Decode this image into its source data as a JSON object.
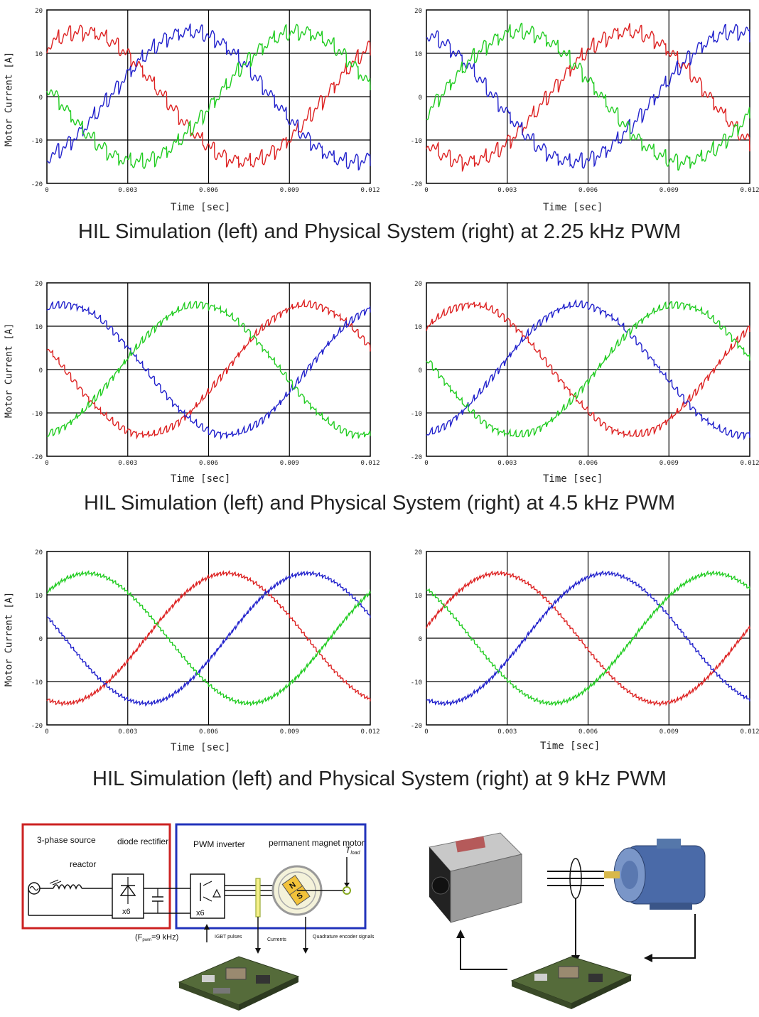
{
  "colors": {
    "phase_a": "#dd2222",
    "phase_b": "#2222cc",
    "phase_c": "#22cc22",
    "grid": "#000000"
  },
  "captions": [
    "HIL Simulation (left) and Physical System (right) at 2.25 kHz PWM",
    "HIL Simulation (left) and Physical System (right) at 4.5 kHz PWM",
    "HIL Simulation (left) and Physical System (right) at 9 kHz PWM"
  ],
  "chart_data": [
    {
      "type": "line",
      "pwm": "2.25 kHz",
      "side": "left",
      "ylabel": "Motor Current [A]",
      "xlabel": "Time [sec]",
      "xlim": [
        0,
        0.012
      ],
      "ylim": [
        -20,
        20
      ],
      "xticks": [
        "0",
        "0.003",
        "0.006",
        "0.009",
        "0.012"
      ],
      "yticks": [
        "20",
        "10",
        "0",
        "-10",
        "-20"
      ],
      "grid": true,
      "series": [
        {
          "color": "red",
          "amplitude": 15,
          "phase_deg": 50,
          "ripple": 2.5,
          "ripple_cycles": 27
        },
        {
          "color": "blue",
          "amplitude": 15,
          "phase_deg": -70,
          "ripple": 2.5,
          "ripple_cycles": 27
        },
        {
          "color": "green",
          "amplitude": 15,
          "phase_deg": 170,
          "ripple": 2.5,
          "ripple_cycles": 27
        }
      ]
    },
    {
      "type": "line",
      "pwm": "2.25 kHz",
      "side": "right",
      "ylabel": "",
      "xlabel": "Time [sec]",
      "xlim": [
        0,
        0.012
      ],
      "ylim": [
        -20,
        20
      ],
      "xticks": [
        "0",
        "0.003",
        "0.006",
        "0.009",
        "0.012"
      ],
      "yticks": [
        "20",
        "10",
        "0",
        "-10",
        "-20"
      ],
      "grid": true,
      "series": [
        {
          "color": "red",
          "amplitude": 15,
          "phase_deg": -135,
          "ripple": 2.5,
          "ripple_cycles": 27
        },
        {
          "color": "blue",
          "amplitude": 15,
          "phase_deg": 105,
          "ripple": 2.5,
          "ripple_cycles": 27
        },
        {
          "color": "green",
          "amplitude": 15,
          "phase_deg": -15,
          "ripple": 2.5,
          "ripple_cycles": 27
        }
      ]
    },
    {
      "type": "line",
      "pwm": "4.5 kHz",
      "side": "left",
      "ylabel": "Motor Current [A]",
      "xlabel": "Time [sec]",
      "xlim": [
        0,
        0.012
      ],
      "ylim": [
        -20,
        20
      ],
      "xticks": [
        "0",
        "0.003",
        "0.006",
        "0.009",
        "0.012"
      ],
      "yticks": [
        "20",
        "10",
        "0",
        "-10",
        "-20"
      ],
      "grid": true,
      "series": [
        {
          "color": "red",
          "amplitude": 15,
          "phase_deg": 160,
          "ripple": 1.2,
          "ripple_cycles": 54
        },
        {
          "color": "blue",
          "amplitude": 15,
          "phase_deg": 70,
          "ripple": 1.2,
          "ripple_cycles": 54
        },
        {
          "color": "green",
          "amplitude": 15,
          "phase_deg": -80,
          "ripple": 1.2,
          "ripple_cycles": 54
        }
      ]
    },
    {
      "type": "line",
      "pwm": "4.5 kHz",
      "side": "right",
      "ylabel": "",
      "xlabel": "Time [sec]",
      "xlim": [
        0,
        0.012
      ],
      "ylim": [
        -20,
        20
      ],
      "xticks": [
        "0",
        "0.003",
        "0.006",
        "0.009",
        "0.012"
      ],
      "yticks": [
        "20",
        "10",
        "0",
        "-10",
        "-20"
      ],
      "grid": true,
      "series": [
        {
          "color": "red",
          "amplitude": 15,
          "phase_deg": 40,
          "ripple": 1.2,
          "ripple_cycles": 54
        },
        {
          "color": "blue",
          "amplitude": 15,
          "phase_deg": -80,
          "ripple": 1.2,
          "ripple_cycles": 54
        },
        {
          "color": "green",
          "amplitude": 15,
          "phase_deg": 170,
          "ripple": 1.2,
          "ripple_cycles": 54
        }
      ]
    },
    {
      "type": "line",
      "pwm": "9 kHz",
      "side": "left",
      "ylabel": "Motor Current [A]",
      "xlabel": "Time [sec]",
      "xlim": [
        0,
        0.012
      ],
      "ylim": [
        -20,
        20
      ],
      "xticks": [
        "0",
        "0.003",
        "0.006",
        "0.009",
        "0.012"
      ],
      "yticks": [
        "20",
        "10",
        "0",
        "-10",
        "-20"
      ],
      "grid": true,
      "series": [
        {
          "color": "red",
          "amplitude": 15,
          "phase_deg": -110,
          "ripple": 0.6,
          "ripple_cycles": 108
        },
        {
          "color": "blue",
          "amplitude": 15,
          "phase_deg": 160,
          "ripple": 0.6,
          "ripple_cycles": 108
        },
        {
          "color": "green",
          "amplitude": 15,
          "phase_deg": 45,
          "ripple": 0.6,
          "ripple_cycles": 108
        }
      ]
    },
    {
      "type": "line",
      "pwm": "9 kHz",
      "side": "right",
      "ylabel": "",
      "xlabel": "Time [sec]",
      "xlim": [
        0,
        0.012
      ],
      "ylim": [
        -20,
        20
      ],
      "xticks": [
        "0",
        "0.003",
        "0.006",
        "0.009",
        "0.012"
      ],
      "yticks": [
        "20",
        "10",
        "0",
        "-10",
        "-20"
      ],
      "grid": true,
      "series": [
        {
          "color": "red",
          "amplitude": 15,
          "phase_deg": 10,
          "ripple": 0.6,
          "ripple_cycles": 108
        },
        {
          "color": "blue",
          "amplitude": 15,
          "phase_deg": -110,
          "ripple": 0.6,
          "ripple_cycles": 108
        },
        {
          "color": "green",
          "amplitude": 15,
          "phase_deg": 130,
          "ripple": 0.6,
          "ripple_cycles": 108
        }
      ]
    }
  ],
  "diagram": {
    "source_label": "3-phase source",
    "reactor_label": "reactor",
    "rectifier_label": "diode rectifier",
    "rectifier_mult": "x6",
    "inverter_label": "PWM inverter",
    "inverter_mult": "x6",
    "motor_label": "permanent magnet motor",
    "tload_label": "T",
    "tload_sub": "load",
    "fpwm_label": "(F",
    "fpwm_sub": "pwm",
    "fpwm_value": "=9 kHz)",
    "igbt_label": "IGBT pulses",
    "currents_label": "Currents",
    "encoder_label": "Quadrature encoder signals"
  }
}
